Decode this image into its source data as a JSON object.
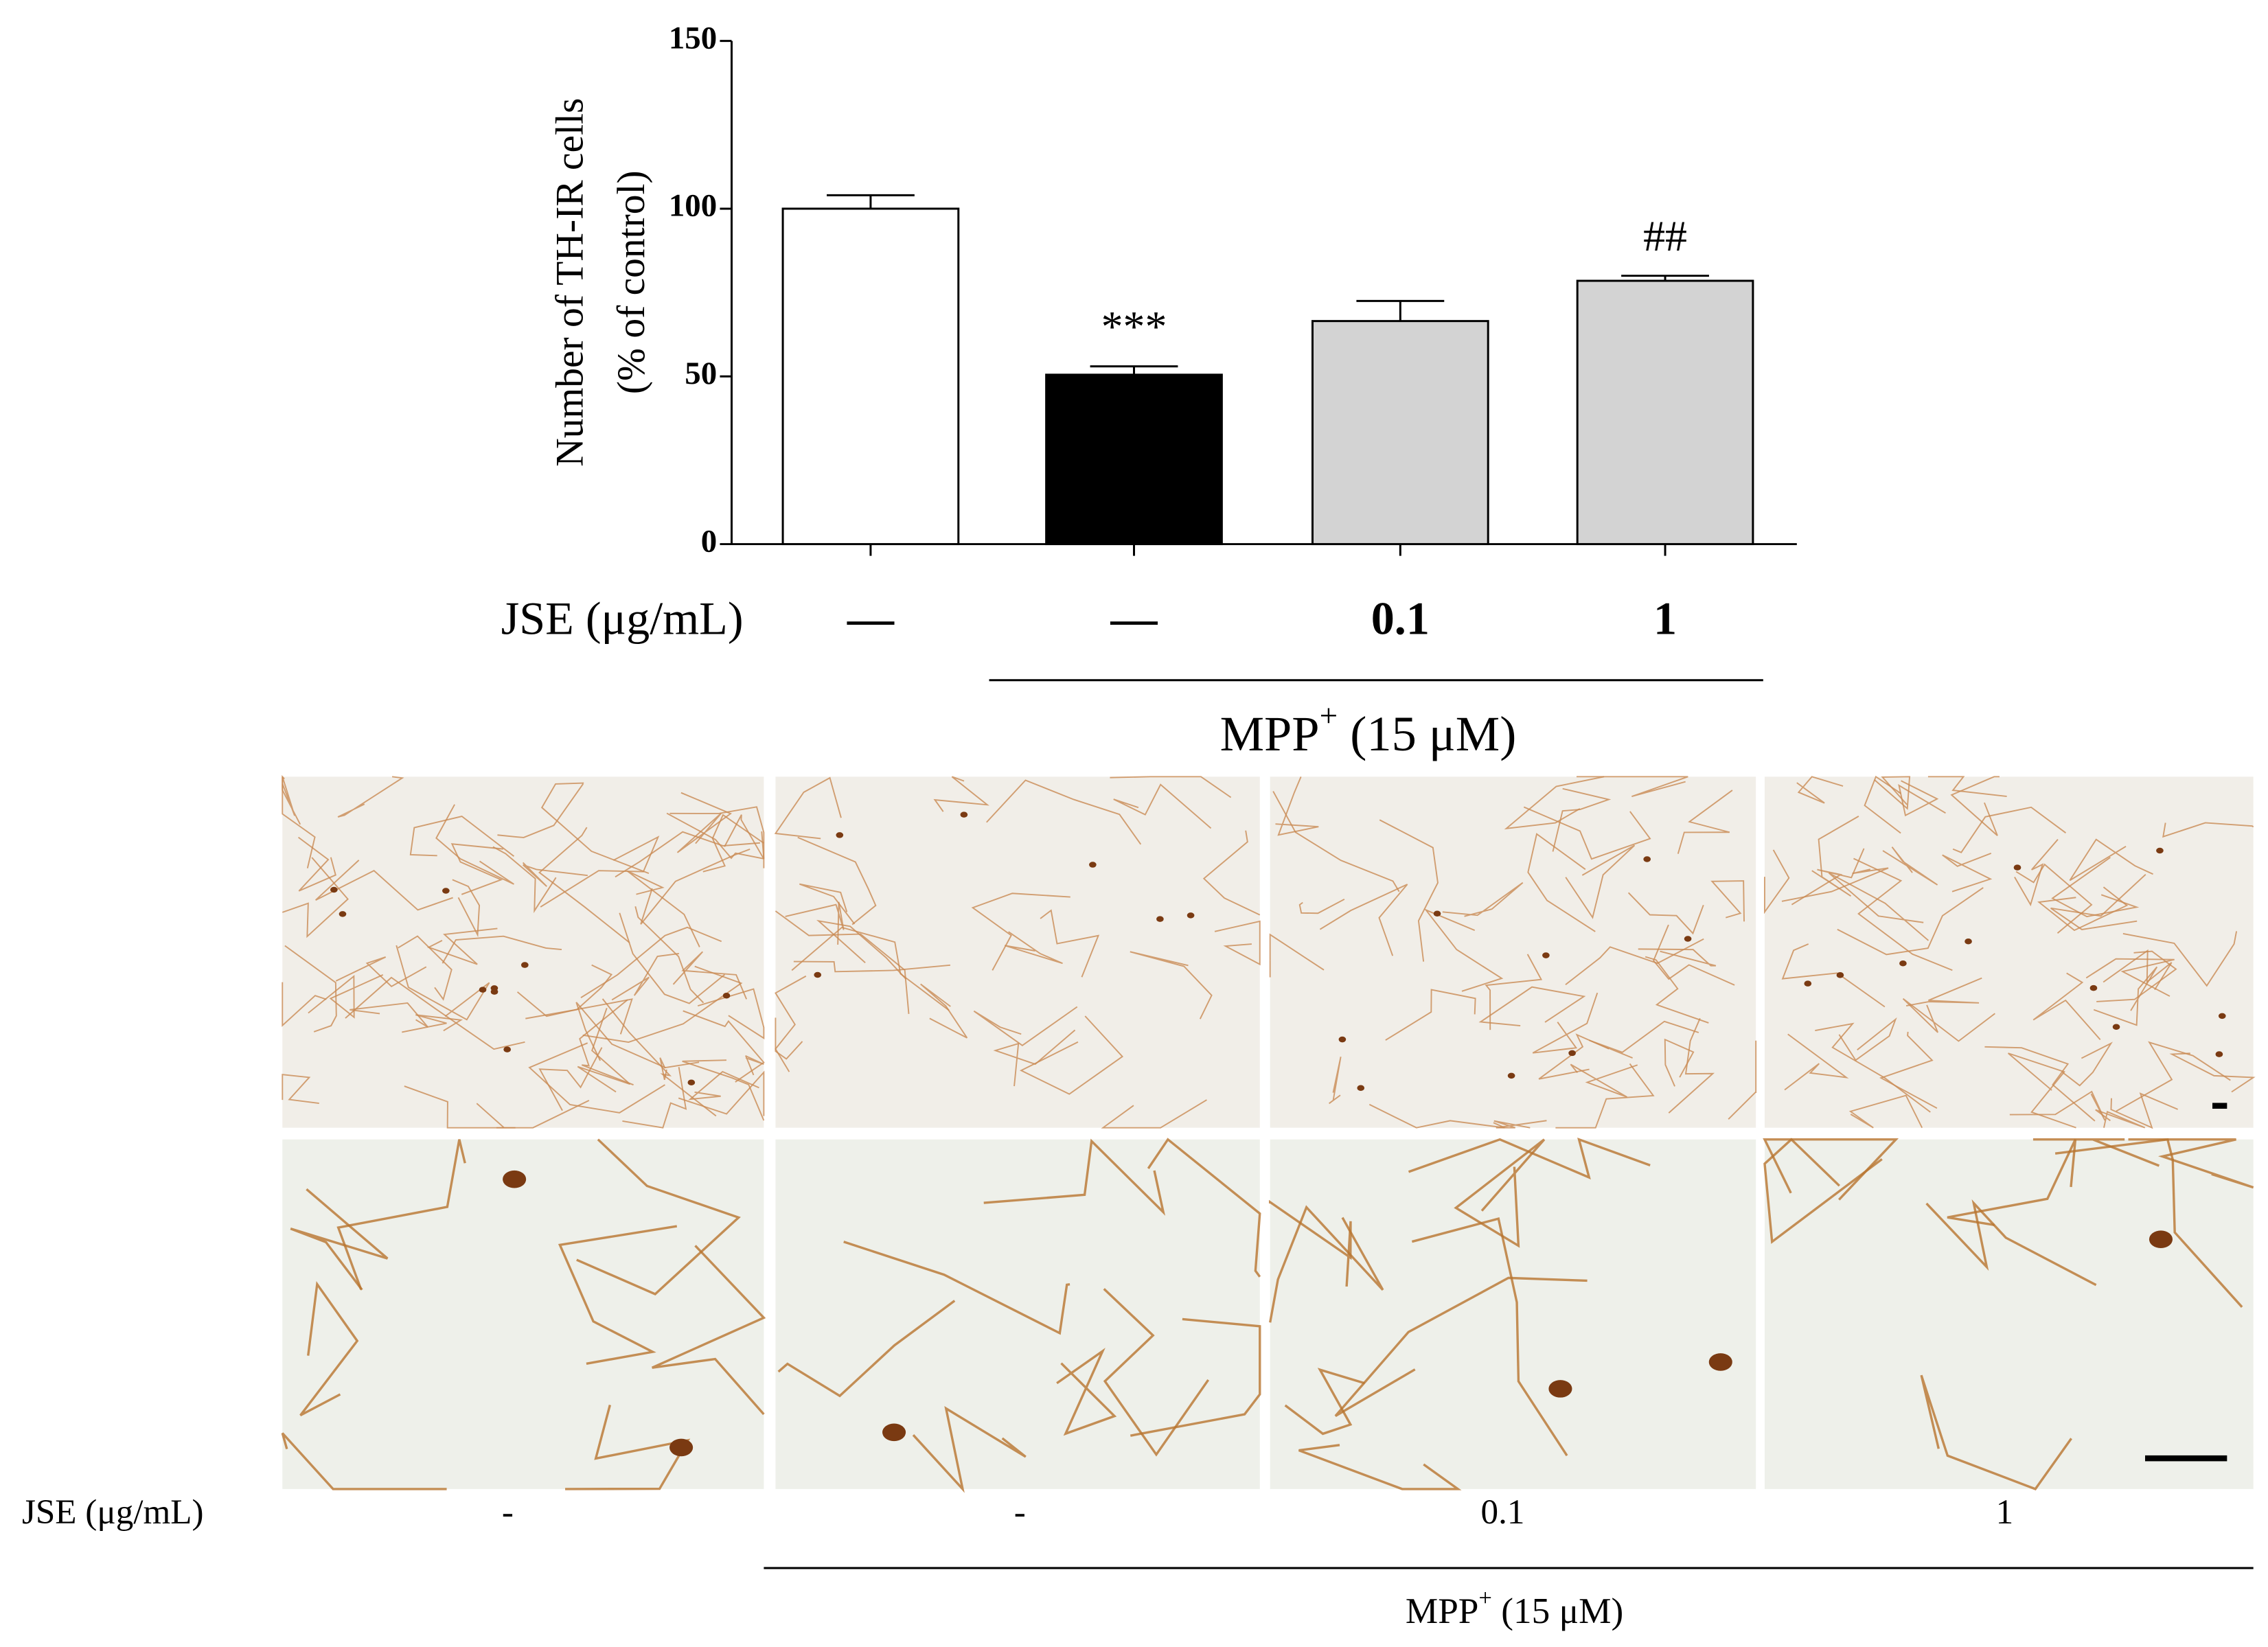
{
  "chart_data": {
    "type": "bar",
    "y_label": [
      "Number of TH-IR cells",
      "(% of control)"
    ],
    "categories": [
      "—",
      "—",
      "0.1",
      "1"
    ],
    "values": [
      100,
      50.5,
      66.5,
      78.5
    ],
    "errors": [
      4,
      2.5,
      6,
      1.5
    ],
    "colors": [
      "#ffffff",
      "#000000",
      "#d3d3d3",
      "#d3d3d3"
    ],
    "annotations": [
      null,
      "***",
      null,
      "##"
    ],
    "ylim": [
      0,
      150
    ],
    "yticks": [
      0,
      50,
      100,
      150
    ],
    "row_label": "JSE (μg/mL)",
    "group_label": {
      "base": "MPP",
      "sup": "+",
      "rest": " (15 μM)"
    }
  },
  "panels": {
    "row_label": "JSE (μg/mL)",
    "columns": [
      "-",
      "-",
      "0.1",
      "1"
    ],
    "group_label": {
      "base": "MPP",
      "sup": "+",
      "rest": " (15 μM)"
    }
  }
}
